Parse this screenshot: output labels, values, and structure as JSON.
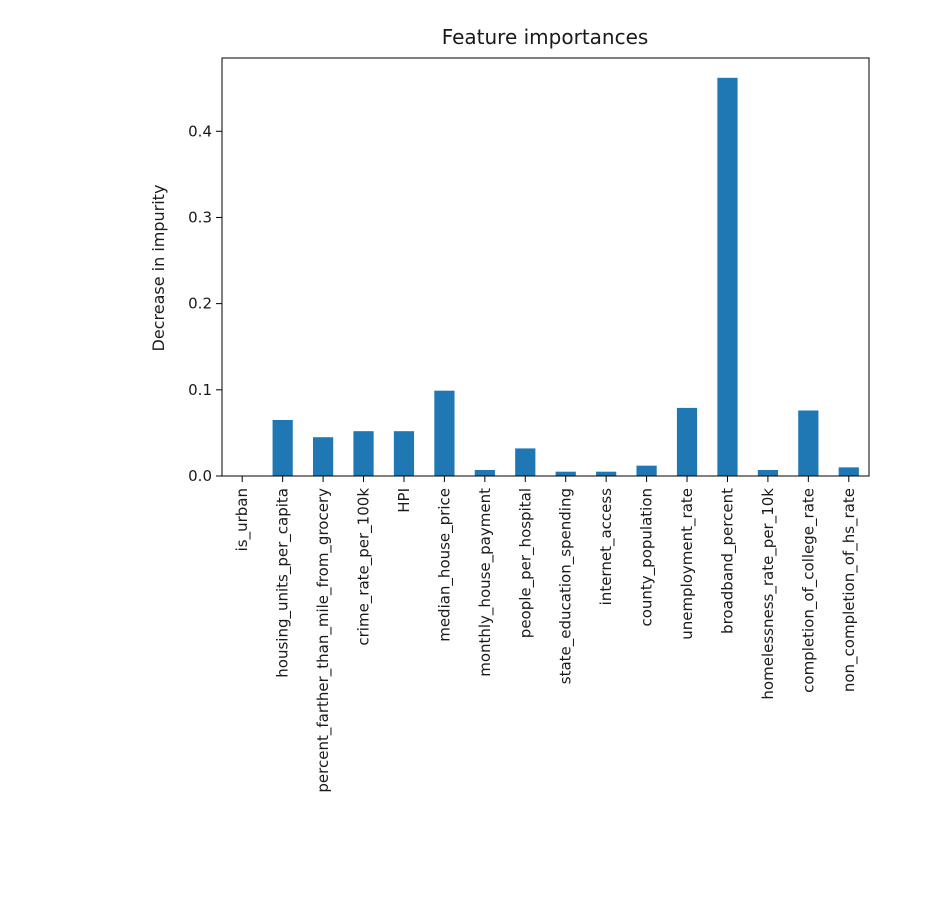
{
  "chart_data": {
    "type": "bar",
    "title": "Feature importances",
    "xlabel": "",
    "ylabel": "Decrease in impurity",
    "ylim": [
      0,
      0.485
    ],
    "yticks": [
      "0.0",
      "0.1",
      "0.2",
      "0.3",
      "0.4"
    ],
    "ytick_values": [
      0.0,
      0.1,
      0.2,
      0.3,
      0.4
    ],
    "grid": false,
    "bar_color": "#1f77b4",
    "categories": [
      "is_urban",
      "housing_units_per_capita",
      "percent_farther_than_mile_from_grocery",
      "crime_rate_per_100k",
      "HPI",
      "median_house_price",
      "monthly_house_payment",
      "people_per_hospital",
      "state_education_spending",
      "internet_access",
      "county_population",
      "unemployment_rate",
      "broadband_percent",
      "homelessness_rate_per_10k",
      "completion_of_college_rate",
      "non_completion_of_hs_rate"
    ],
    "values": [
      0.0,
      0.065,
      0.045,
      0.052,
      0.052,
      0.099,
      0.007,
      0.032,
      0.005,
      0.005,
      0.012,
      0.079,
      0.462,
      0.007,
      0.076,
      0.01
    ]
  }
}
